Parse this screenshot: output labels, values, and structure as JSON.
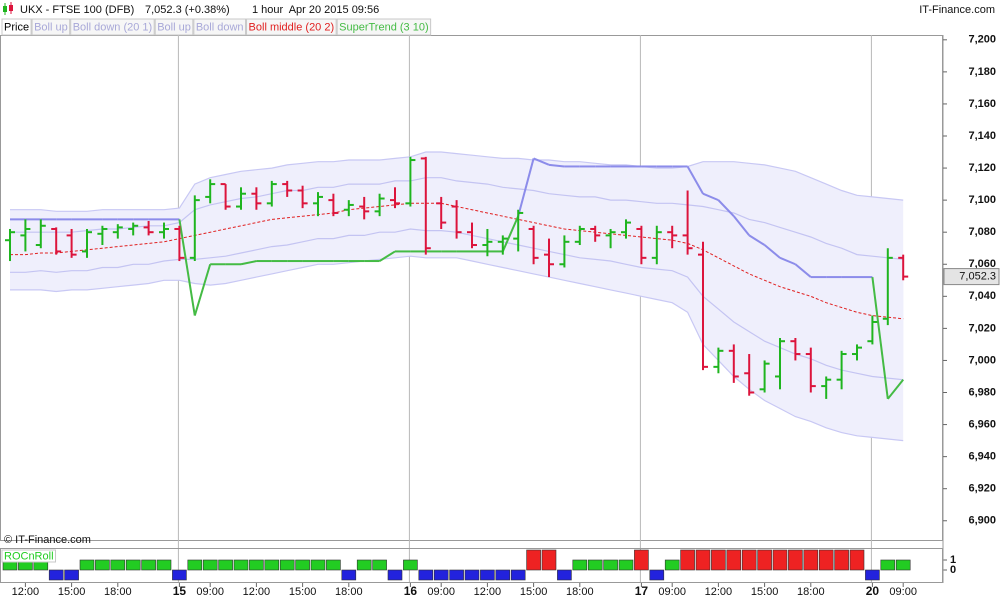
{
  "chart_data": {
    "type": "ohlc",
    "title": "UKX - FTSE 100 (DFB)",
    "subtitle": "7,052.3 (+0.38%)",
    "period": "1 hour  Apr 20 2015 09:56",
    "source": "IT-Finance.com",
    "watermark": "© IT-Finance.com",
    "categories": [
      null,
      "12:00",
      null,
      null,
      "15:00",
      null,
      null,
      "18:00",
      null,
      null,
      null,
      "15",
      null,
      "09:00",
      null,
      null,
      "12:00",
      null,
      null,
      "15:00",
      null,
      null,
      "18:00",
      null,
      null,
      null,
      "16",
      null,
      "09:00",
      null,
      null,
      "12:00",
      null,
      null,
      "15:00",
      null,
      null,
      "18:00",
      null,
      null,
      null,
      "17",
      null,
      "09:00",
      null,
      null,
      "12:00",
      null,
      null,
      "15:00",
      null,
      null,
      "18:00",
      null,
      null,
      null,
      "20",
      null,
      "09:00"
    ],
    "ylim": [
      6888,
      7203
    ],
    "yticks": [
      {
        "value": 6900,
        "label": "6,900"
      },
      {
        "value": 6920,
        "label": "6,920"
      },
      {
        "value": 6940,
        "label": "6,940"
      },
      {
        "value": 6960,
        "label": "6,960"
      },
      {
        "value": 6980,
        "label": "6,980"
      },
      {
        "value": 7000,
        "label": "7,000"
      },
      {
        "value": 7020,
        "label": "7,020"
      },
      {
        "value": 7040,
        "label": "7,040"
      },
      {
        "value": 7060,
        "label": "7,060"
      },
      {
        "value": 7080,
        "label": "7,080"
      },
      {
        "value": 7100,
        "label": "7,100"
      },
      {
        "value": 7120,
        "label": "7,120"
      },
      {
        "value": 7140,
        "label": "7,140"
      },
      {
        "value": 7160,
        "label": "7,160"
      },
      {
        "value": 7180,
        "label": "7,180"
      },
      {
        "value": 7200,
        "label": "7,200"
      }
    ],
    "last_price": {
      "value": 7052.3,
      "label": "7,052.3"
    },
    "series": [
      {
        "name": "Price",
        "type": "ohlc",
        "color": "#1fb51f",
        "down_color": "#dc143c",
        "legend_color": "#000000",
        "open": [
          7075,
          7078,
          7072,
          7082,
          7078,
          7068,
          7079,
          7080,
          7082,
          7083,
          7080,
          7082,
          7064,
          7102,
          7110,
          7096,
          7104,
          7098,
          7110,
          7106,
          7098,
          7100,
          7094,
          7096,
          7093,
          7100,
          7098,
          7126,
          7098,
          7096,
          7080,
          7072,
          7074,
          7076,
          7082,
          7066,
          7060,
          7074,
          7082,
          7078,
          7080,
          7082,
          7064,
          7080,
          7078,
          7066,
          6996,
          7006,
          6992,
          6982,
          6990,
          7012,
          7004,
          6984,
          6988,
          7004,
          7012,
          7026,
          7064
        ],
        "high": [
          7082,
          7088,
          7088,
          7083,
          7082,
          7082,
          7084,
          7085,
          7086,
          7087,
          7086,
          7084,
          7103,
          7113,
          7110,
          7108,
          7108,
          7112,
          7112,
          7109,
          7105,
          7104,
          7100,
          7102,
          7104,
          7108,
          7127,
          7127,
          7102,
          7100,
          7086,
          7082,
          7078,
          7094,
          7084,
          7076,
          7078,
          7084,
          7084,
          7082,
          7088,
          7084,
          7084,
          7084,
          7106,
          7074,
          7008,
          7010,
          7004,
          7000,
          7014,
          7014,
          7008,
          6990,
          7006,
          7010,
          7028,
          7070,
          7066
        ],
        "low": [
          7062,
          7068,
          7070,
          7066,
          7064,
          7064,
          7072,
          7076,
          7078,
          7078,
          7076,
          7062,
          7062,
          7098,
          7094,
          7094,
          7094,
          7096,
          7102,
          7095,
          7090,
          7090,
          7090,
          7088,
          7090,
          7095,
          7096,
          7066,
          7082,
          7076,
          7070,
          7065,
          7066,
          7068,
          7060,
          7052,
          7058,
          7072,
          7074,
          7070,
          7076,
          7060,
          7060,
          7070,
          7066,
          6994,
          6992,
          6986,
          6978,
          6980,
          6982,
          7000,
          6980,
          6976,
          6982,
          7000,
          7010,
          7022,
          7050
        ],
        "close": [
          7080,
          7082,
          7084,
          7068,
          7066,
          7080,
          7082,
          7083,
          7084,
          7080,
          7082,
          7064,
          7100,
          7110,
          7096,
          7104,
          7098,
          7110,
          7106,
          7098,
          7102,
          7092,
          7097,
          7093,
          7101,
          7098,
          7125,
          7070,
          7086,
          7080,
          7072,
          7074,
          7076,
          7092,
          7064,
          7060,
          7074,
          7082,
          7078,
          7080,
          7086,
          7064,
          7080,
          7078,
          7070,
          6996,
          7006,
          6990,
          6980,
          6998,
          7012,
          7004,
          6984,
          6988,
          7004,
          7008,
          7024,
          7064,
          7052.3
        ]
      },
      {
        "name": "Boll up",
        "type": "line",
        "color": "#c4c4f2",
        "fill": "#e2e2f9",
        "values": [
          7080,
          7080,
          7080,
          7080,
          7080,
          7081,
          7082,
          7082,
          7083,
          7084,
          7084,
          7086,
          7094,
          7097,
          7099,
          7101,
          7102,
          7104,
          7106,
          7106,
          7108,
          7108,
          7110,
          7110,
          7110,
          7112,
          7112,
          7114,
          7114,
          7112,
          7111,
          7110,
          7108,
          7107,
          7106,
          7104,
          7103,
          7102,
          7102,
          7100,
          7100,
          7099,
          7098,
          7098,
          7097,
          7096,
          7094,
          7092,
          7088,
          7086,
          7083,
          7080,
          7077,
          7073,
          7070,
          7066,
          7065,
          7064,
          7063
        ]
      },
      {
        "name": "Boll down (20 1)",
        "type": "line",
        "color": "#c4c4f2",
        "values": [
          7055,
          7055,
          7056,
          7055,
          7056,
          7056,
          7058,
          7058,
          7060,
          7060,
          7062,
          7063,
          7063,
          7064,
          7065,
          7067,
          7069,
          7071,
          7072,
          7074,
          7076,
          7076,
          7078,
          7078,
          7080,
          7080,
          7082,
          7081,
          7081,
          7080,
          7078,
          7076,
          7074,
          7072,
          7070,
          7068,
          7066,
          7064,
          7063,
          7062,
          7060,
          7058,
          7057,
          7056,
          7052,
          7040,
          7032,
          7024,
          7018,
          7012,
          7008,
          7004,
          7001,
          6997,
          6994,
          6992,
          6990,
          6989,
          6988
        ]
      },
      {
        "name": "Boll up",
        "type": "line",
        "color": "#c8c8f4",
        "fill": "#efeffc",
        "values": [
          7094,
          7094,
          7094,
          7093,
          7093,
          7093,
          7094,
          7094,
          7094,
          7094,
          7094,
          7095,
          7110,
          7114,
          7116,
          7118,
          7119,
          7120,
          7122,
          7123,
          7124,
          7124,
          7125,
          7125,
          7125,
          7126,
          7127,
          7130,
          7130,
          7129,
          7128,
          7127,
          7126,
          7126,
          7125,
          7125,
          7124,
          7124,
          7123,
          7122,
          7122,
          7121,
          7120,
          7120,
          7121,
          7124,
          7124,
          7124,
          7123,
          7122,
          7120,
          7118,
          7114,
          7110,
          7106,
          7103,
          7102,
          7101,
          7100
        ]
      },
      {
        "name": "Boll down",
        "type": "line",
        "color": "#c8c8f4",
        "values": [
          7044,
          7044,
          7044,
          7043,
          7044,
          7044,
          7045,
          7046,
          7047,
          7048,
          7050,
          7050,
          7048,
          7047,
          7048,
          7050,
          7052,
          7054,
          7056,
          7058,
          7060,
          7060,
          7061,
          7062,
          7063,
          7064,
          7065,
          7064,
          7064,
          7064,
          7062,
          7060,
          7058,
          7056,
          7054,
          7052,
          7050,
          7048,
          7046,
          7044,
          7042,
          7040,
          7038,
          7036,
          7030,
          7010,
          7000,
          6990,
          6982,
          6975,
          6970,
          6965,
          6962,
          6958,
          6955,
          6953,
          6952,
          6951,
          6950
        ]
      },
      {
        "name": "Boll middle (20 2)",
        "type": "line",
        "color": "#e02020",
        "dashed": true,
        "values": [
          7066,
          7066,
          7067,
          7067,
          7068,
          7069,
          7070,
          7071,
          7072,
          7073,
          7074,
          7076,
          7078,
          7080,
          7082,
          7084,
          7086,
          7088,
          7089,
          7090,
          7091,
          7092,
          7094,
          7095,
          7096,
          7097,
          7098,
          7098,
          7098,
          7096,
          7094,
          7092,
          7090,
          7088,
          7086,
          7084,
          7082,
          7081,
          7080,
          7079,
          7078,
          7077,
          7076,
          7075,
          7073,
          7069,
          7064,
          7059,
          7054,
          7050,
          7046,
          7043,
          7040,
          7036,
          7033,
          7030,
          7028,
          7027,
          7026
        ]
      },
      {
        "name": "SuperTrend (3 10)",
        "type": "supertrend",
        "color": "#44bb44",
        "bear_color": "#8c8cea",
        "values": [
          7088,
          7088,
          7088,
          7088,
          7088,
          7088,
          7088,
          7088,
          7088,
          7088,
          7088,
          7088,
          7028,
          7060,
          7060,
          7060,
          7062,
          7062,
          7062,
          7062,
          7062,
          7062,
          7062,
          7062,
          7062,
          7068,
          7068,
          7068,
          7068,
          7068,
          7068,
          7068,
          7068,
          7090,
          7126,
          7122,
          7121,
          7121,
          7121,
          7121,
          7121,
          7121,
          7121,
          7121,
          7121,
          7104,
          7100,
          7090,
          7078,
          7072,
          7064,
          7060,
          7052,
          7052,
          7052,
          7052,
          7052,
          6976,
          6988
        ]
      }
    ],
    "indicator": {
      "name": "ROCnRoll",
      "ylim": [
        -1,
        2
      ],
      "yticks": [
        0,
        1
      ],
      "positive_color": "#22cc22",
      "strong_color": "#ee2222",
      "negative_color": "#2222dd",
      "values": [
        1,
        1,
        1,
        -1,
        -1,
        1,
        1,
        1,
        1,
        1,
        1,
        -1,
        1,
        1,
        1,
        1,
        1,
        1,
        1,
        1,
        1,
        1,
        -1,
        1,
        1,
        -1,
        1,
        -1,
        -1,
        -1,
        -1,
        -1,
        -1,
        -1,
        2,
        2,
        -1,
        1,
        1,
        1,
        1,
        2,
        -1,
        1,
        2,
        2,
        2,
        2,
        2,
        2,
        2,
        2,
        2,
        2,
        2,
        2,
        -1,
        1,
        1
      ]
    }
  }
}
